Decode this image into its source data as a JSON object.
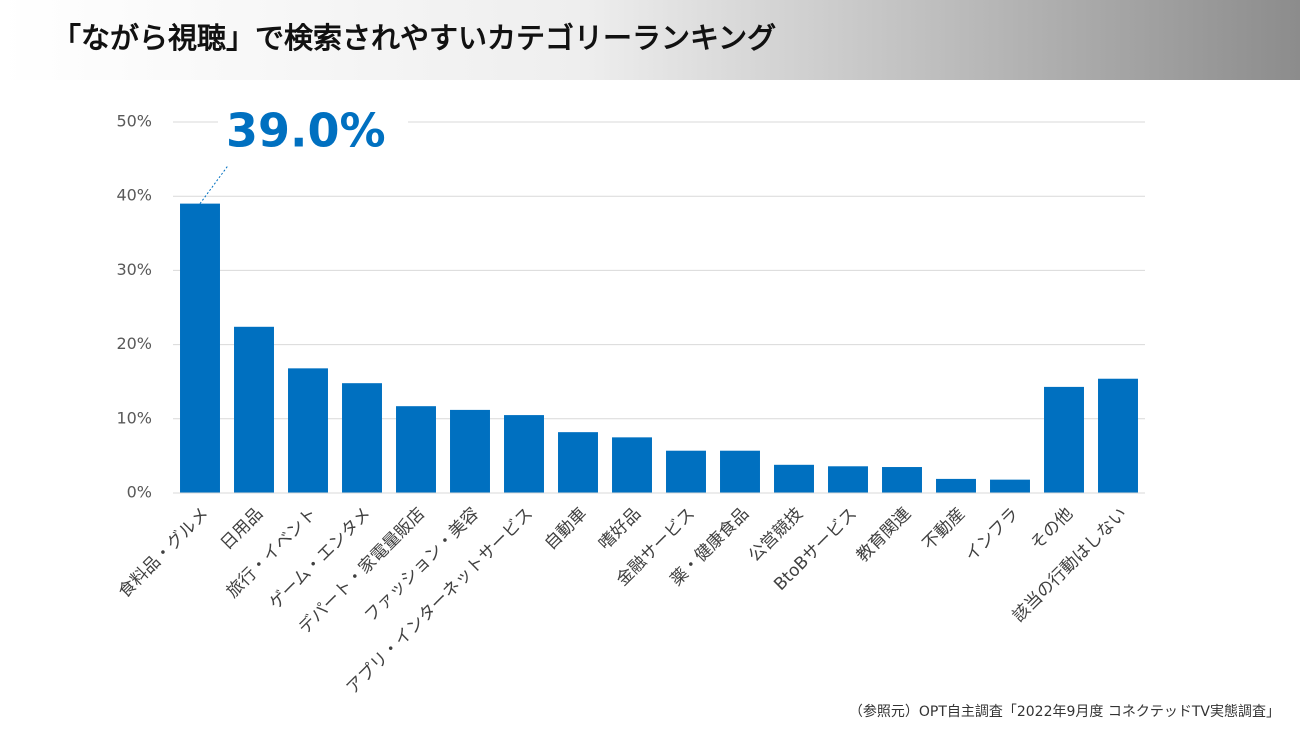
{
  "chart_data": {
    "type": "bar",
    "title": "「ながら視聴」で検索されやすいカテゴリーランキング",
    "categories": [
      "食料品・グルメ",
      "日用品",
      "旅行・イベント",
      "ゲーム・エンタメ",
      "デパート・家電量販店",
      "ファッション・美容",
      "アプリ・インターネットサービス",
      "自動車",
      "嗜好品",
      "金融サービス",
      "薬・健康食品",
      "公営競技",
      "BtoBサービス",
      "教育関連",
      "不動産",
      "インフラ",
      "その他",
      "該当の行動はしない"
    ],
    "values": [
      39.0,
      22.4,
      16.8,
      14.8,
      11.7,
      11.2,
      10.5,
      8.2,
      7.5,
      5.7,
      5.7,
      3.8,
      3.6,
      3.5,
      1.9,
      1.8,
      14.3,
      15.4
    ],
    "value_labels": [
      "39.0%",
      null,
      null,
      null,
      null,
      null,
      null,
      null,
      null,
      null,
      null,
      null,
      null,
      null,
      null,
      null,
      null,
      null
    ],
    "color": "#0070c0",
    "ylim": [
      0,
      50
    ],
    "yticks": [
      {
        "value": 0,
        "label": "0%"
      },
      {
        "value": 10,
        "label": "10%"
      },
      {
        "value": 20,
        "label": "20%"
      },
      {
        "value": 30,
        "label": "30%"
      },
      {
        "value": 40,
        "label": "40%"
      },
      {
        "value": 50,
        "label": "50%"
      }
    ],
    "grid": true,
    "source": "（参照元）OPT自主調査「2022年9月度 コネクテッドTV実態調査」"
  }
}
